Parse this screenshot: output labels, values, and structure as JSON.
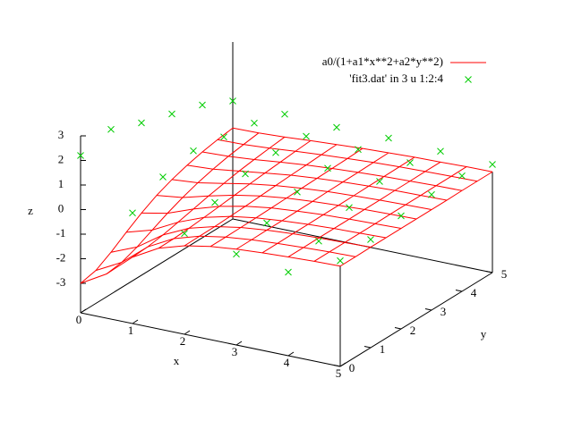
{
  "chart_data": {
    "type": "surface3d",
    "xlabel": "x",
    "ylabel": "y",
    "zlabel": "z",
    "xlim": [
      0,
      5
    ],
    "ylim": [
      0,
      5
    ],
    "zlim": [
      -3,
      3
    ],
    "xticks": [
      0,
      1,
      2,
      3,
      4,
      5
    ],
    "yticks": [
      0,
      1,
      2,
      3,
      4,
      5
    ],
    "zticks": [
      -3,
      -2,
      -1,
      0,
      1,
      2,
      3
    ],
    "surface": {
      "name": "a0/(1+a1*x**2+a2*y**2)",
      "color": "#ff0000",
      "x": [
        0,
        0.5,
        1,
        1.5,
        2,
        2.5,
        3,
        3.5,
        4,
        4.5,
        5
      ],
      "y": [
        0,
        0.5,
        1,
        1.5,
        2,
        2.5,
        3,
        3.5,
        4,
        4.5,
        5
      ],
      "z": [
        [
          -3,
          -2.4,
          -1.5,
          -0.92,
          -0.6,
          -0.41,
          -0.3,
          -0.23,
          -0.18,
          -0.14,
          -0.12
        ],
        [
          -2.86,
          -2.31,
          -1.46,
          -0.91,
          -0.59,
          -0.41,
          -0.3,
          -0.23,
          -0.18,
          -0.14,
          -0.12
        ],
        [
          -2.5,
          -2.07,
          -1.36,
          -0.87,
          -0.58,
          -0.4,
          -0.29,
          -0.22,
          -0.17,
          -0.14,
          -0.11
        ],
        [
          -2.07,
          -1.76,
          -1.22,
          -0.81,
          -0.55,
          -0.39,
          -0.29,
          -0.22,
          -0.17,
          -0.14,
          -0.11
        ],
        [
          -1.67,
          -1.46,
          -1.07,
          -0.74,
          -0.52,
          -0.37,
          -0.28,
          -0.21,
          -0.17,
          -0.14,
          -0.11
        ],
        [
          -1.33,
          -1.2,
          -0.92,
          -0.67,
          -0.48,
          -0.35,
          -0.27,
          -0.21,
          -0.16,
          -0.13,
          -0.11
        ],
        [
          -1.07,
          -0.98,
          -0.79,
          -0.59,
          -0.44,
          -0.33,
          -0.25,
          -0.2,
          -0.16,
          -0.13,
          -0.11
        ],
        [
          -0.87,
          -0.81,
          -0.67,
          -0.53,
          -0.4,
          -0.31,
          -0.24,
          -0.19,
          -0.15,
          -0.13,
          -0.11
        ],
        [
          -0.71,
          -0.67,
          -0.58,
          -0.47,
          -0.37,
          -0.29,
          -0.23,
          -0.18,
          -0.15,
          -0.12,
          -0.1
        ],
        [
          -0.59,
          -0.57,
          -0.5,
          -0.41,
          -0.33,
          -0.27,
          -0.21,
          -0.17,
          -0.14,
          -0.12,
          -0.1
        ],
        [
          -0.5,
          -0.48,
          -0.43,
          -0.36,
          -0.3,
          -0.24,
          -0.2,
          -0.16,
          -0.14,
          -0.11,
          -0.1
        ]
      ]
    },
    "points": {
      "name": "'fit3.dat' in 3 u 1:2:4",
      "color": "#00cc00",
      "x": [
        0,
        1,
        2,
        3,
        4,
        5,
        0,
        1,
        2,
        3,
        4,
        5,
        0,
        1,
        2,
        3,
        4,
        5,
        0,
        1,
        2,
        3,
        4,
        5,
        0,
        1,
        2,
        3,
        4,
        5,
        0,
        1,
        2,
        3,
        4,
        5
      ],
      "y": [
        0,
        0,
        0,
        0,
        0,
        0,
        1,
        1,
        1,
        1,
        1,
        1,
        2,
        2,
        2,
        2,
        2,
        2,
        3,
        3,
        3,
        3,
        3,
        3,
        4,
        4,
        4,
        4,
        4,
        4,
        5,
        5,
        5,
        5,
        5,
        5
      ],
      "z": [
        2.2,
        0.3,
        -0.1,
        -0.5,
        -0.8,
        0.1,
        2.5,
        1.0,
        0.4,
        0.0,
        -0.3,
        0.2,
        2.0,
        1.3,
        0.8,
        0.5,
        0.3,
        0.4,
        1.6,
        1.1,
        0.9,
        0.7,
        0.6,
        0.5,
        1.2,
        0.9,
        0.8,
        0.7,
        0.6,
        0.5,
        0.6,
        0.5,
        0.4,
        0.4,
        0.3,
        0.2
      ]
    }
  }
}
